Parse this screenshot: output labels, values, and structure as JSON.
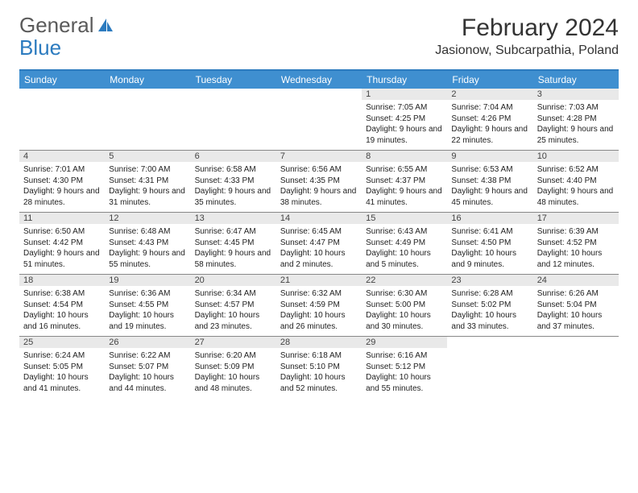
{
  "logo": {
    "text1": "General",
    "text2": "Blue"
  },
  "title": "February 2024",
  "location": "Jasionow, Subcarpathia, Poland",
  "colors": {
    "header_bg": "#3f8fd0",
    "header_border": "#2c7bbf",
    "row_border": "#888888",
    "numbar_bg": "#e9e9e9",
    "text": "#222222"
  },
  "day_names": [
    "Sunday",
    "Monday",
    "Tuesday",
    "Wednesday",
    "Thursday",
    "Friday",
    "Saturday"
  ],
  "weeks": [
    [
      {
        "n": "",
        "sr": "",
        "ss": "",
        "dl": ""
      },
      {
        "n": "",
        "sr": "",
        "ss": "",
        "dl": ""
      },
      {
        "n": "",
        "sr": "",
        "ss": "",
        "dl": ""
      },
      {
        "n": "",
        "sr": "",
        "ss": "",
        "dl": ""
      },
      {
        "n": "1",
        "sr": "Sunrise: 7:05 AM",
        "ss": "Sunset: 4:25 PM",
        "dl": "Daylight: 9 hours and 19 minutes."
      },
      {
        "n": "2",
        "sr": "Sunrise: 7:04 AM",
        "ss": "Sunset: 4:26 PM",
        "dl": "Daylight: 9 hours and 22 minutes."
      },
      {
        "n": "3",
        "sr": "Sunrise: 7:03 AM",
        "ss": "Sunset: 4:28 PM",
        "dl": "Daylight: 9 hours and 25 minutes."
      }
    ],
    [
      {
        "n": "4",
        "sr": "Sunrise: 7:01 AM",
        "ss": "Sunset: 4:30 PM",
        "dl": "Daylight: 9 hours and 28 minutes."
      },
      {
        "n": "5",
        "sr": "Sunrise: 7:00 AM",
        "ss": "Sunset: 4:31 PM",
        "dl": "Daylight: 9 hours and 31 minutes."
      },
      {
        "n": "6",
        "sr": "Sunrise: 6:58 AM",
        "ss": "Sunset: 4:33 PM",
        "dl": "Daylight: 9 hours and 35 minutes."
      },
      {
        "n": "7",
        "sr": "Sunrise: 6:56 AM",
        "ss": "Sunset: 4:35 PM",
        "dl": "Daylight: 9 hours and 38 minutes."
      },
      {
        "n": "8",
        "sr": "Sunrise: 6:55 AM",
        "ss": "Sunset: 4:37 PM",
        "dl": "Daylight: 9 hours and 41 minutes."
      },
      {
        "n": "9",
        "sr": "Sunrise: 6:53 AM",
        "ss": "Sunset: 4:38 PM",
        "dl": "Daylight: 9 hours and 45 minutes."
      },
      {
        "n": "10",
        "sr": "Sunrise: 6:52 AM",
        "ss": "Sunset: 4:40 PM",
        "dl": "Daylight: 9 hours and 48 minutes."
      }
    ],
    [
      {
        "n": "11",
        "sr": "Sunrise: 6:50 AM",
        "ss": "Sunset: 4:42 PM",
        "dl": "Daylight: 9 hours and 51 minutes."
      },
      {
        "n": "12",
        "sr": "Sunrise: 6:48 AM",
        "ss": "Sunset: 4:43 PM",
        "dl": "Daylight: 9 hours and 55 minutes."
      },
      {
        "n": "13",
        "sr": "Sunrise: 6:47 AM",
        "ss": "Sunset: 4:45 PM",
        "dl": "Daylight: 9 hours and 58 minutes."
      },
      {
        "n": "14",
        "sr": "Sunrise: 6:45 AM",
        "ss": "Sunset: 4:47 PM",
        "dl": "Daylight: 10 hours and 2 minutes."
      },
      {
        "n": "15",
        "sr": "Sunrise: 6:43 AM",
        "ss": "Sunset: 4:49 PM",
        "dl": "Daylight: 10 hours and 5 minutes."
      },
      {
        "n": "16",
        "sr": "Sunrise: 6:41 AM",
        "ss": "Sunset: 4:50 PM",
        "dl": "Daylight: 10 hours and 9 minutes."
      },
      {
        "n": "17",
        "sr": "Sunrise: 6:39 AM",
        "ss": "Sunset: 4:52 PM",
        "dl": "Daylight: 10 hours and 12 minutes."
      }
    ],
    [
      {
        "n": "18",
        "sr": "Sunrise: 6:38 AM",
        "ss": "Sunset: 4:54 PM",
        "dl": "Daylight: 10 hours and 16 minutes."
      },
      {
        "n": "19",
        "sr": "Sunrise: 6:36 AM",
        "ss": "Sunset: 4:55 PM",
        "dl": "Daylight: 10 hours and 19 minutes."
      },
      {
        "n": "20",
        "sr": "Sunrise: 6:34 AM",
        "ss": "Sunset: 4:57 PM",
        "dl": "Daylight: 10 hours and 23 minutes."
      },
      {
        "n": "21",
        "sr": "Sunrise: 6:32 AM",
        "ss": "Sunset: 4:59 PM",
        "dl": "Daylight: 10 hours and 26 minutes."
      },
      {
        "n": "22",
        "sr": "Sunrise: 6:30 AM",
        "ss": "Sunset: 5:00 PM",
        "dl": "Daylight: 10 hours and 30 minutes."
      },
      {
        "n": "23",
        "sr": "Sunrise: 6:28 AM",
        "ss": "Sunset: 5:02 PM",
        "dl": "Daylight: 10 hours and 33 minutes."
      },
      {
        "n": "24",
        "sr": "Sunrise: 6:26 AM",
        "ss": "Sunset: 5:04 PM",
        "dl": "Daylight: 10 hours and 37 minutes."
      }
    ],
    [
      {
        "n": "25",
        "sr": "Sunrise: 6:24 AM",
        "ss": "Sunset: 5:05 PM",
        "dl": "Daylight: 10 hours and 41 minutes."
      },
      {
        "n": "26",
        "sr": "Sunrise: 6:22 AM",
        "ss": "Sunset: 5:07 PM",
        "dl": "Daylight: 10 hours and 44 minutes."
      },
      {
        "n": "27",
        "sr": "Sunrise: 6:20 AM",
        "ss": "Sunset: 5:09 PM",
        "dl": "Daylight: 10 hours and 48 minutes."
      },
      {
        "n": "28",
        "sr": "Sunrise: 6:18 AM",
        "ss": "Sunset: 5:10 PM",
        "dl": "Daylight: 10 hours and 52 minutes."
      },
      {
        "n": "29",
        "sr": "Sunrise: 6:16 AM",
        "ss": "Sunset: 5:12 PM",
        "dl": "Daylight: 10 hours and 55 minutes."
      },
      {
        "n": "",
        "sr": "",
        "ss": "",
        "dl": ""
      },
      {
        "n": "",
        "sr": "",
        "ss": "",
        "dl": ""
      }
    ]
  ]
}
